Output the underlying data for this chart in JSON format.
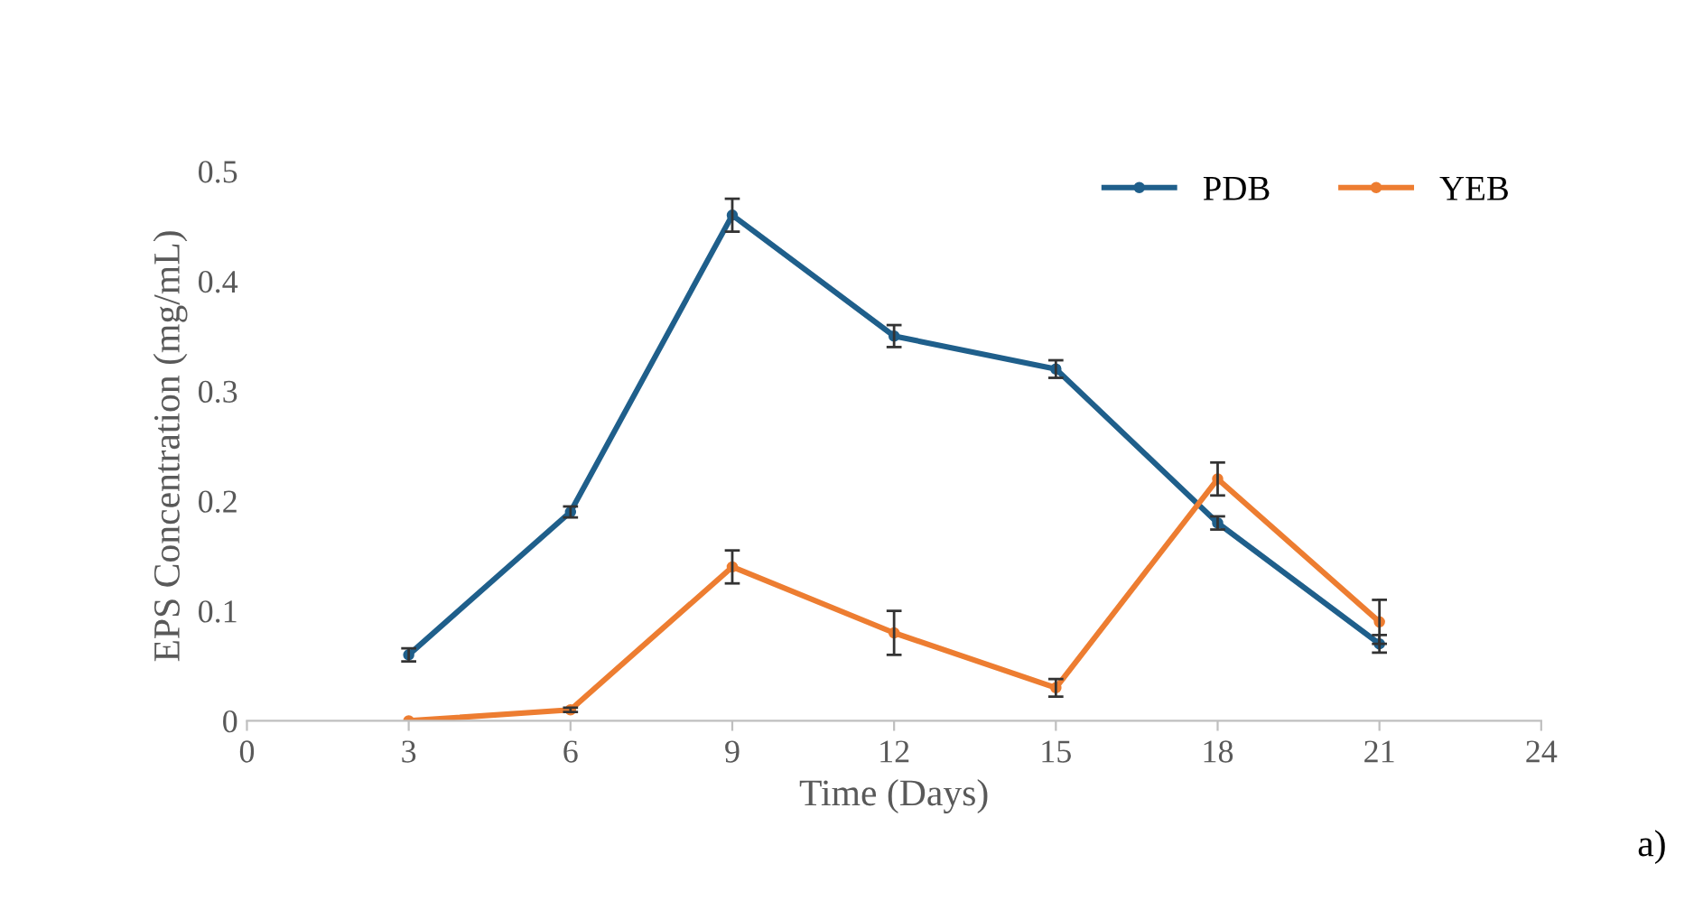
{
  "chart_data": {
    "type": "line",
    "xlabel": "Time (Days)",
    "ylabel": "EPS Concentration (mg/mL)",
    "x": [
      3,
      6,
      9,
      12,
      15,
      18,
      21
    ],
    "series": [
      {
        "name": "PDB",
        "color": "#1f5f8b",
        "values": [
          0.06,
          0.19,
          0.46,
          0.35,
          0.32,
          0.18,
          0.07
        ],
        "errors": [
          0.006,
          0.005,
          0.015,
          0.01,
          0.008,
          0.006,
          0.008
        ]
      },
      {
        "name": "YEB",
        "color": "#ed7d31",
        "values": [
          0,
          0.01,
          0.14,
          0.08,
          0.03,
          0.22,
          0.09
        ],
        "errors": [
          null,
          0.002,
          0.015,
          0.02,
          0.008,
          0.015,
          0.02
        ]
      }
    ],
    "xlim": [
      0,
      24
    ],
    "xticks": [
      0,
      3,
      6,
      9,
      12,
      15,
      18,
      21,
      24
    ],
    "ylim": [
      0,
      0.5
    ],
    "yticks": [
      {
        "value": 0,
        "label": "0"
      },
      0.1,
      0.2,
      0.3,
      0.4,
      0.5
    ],
    "grid": false,
    "legend": "top right",
    "marker": "circle",
    "line_style": "solid",
    "annotations": [
      "a)"
    ]
  }
}
